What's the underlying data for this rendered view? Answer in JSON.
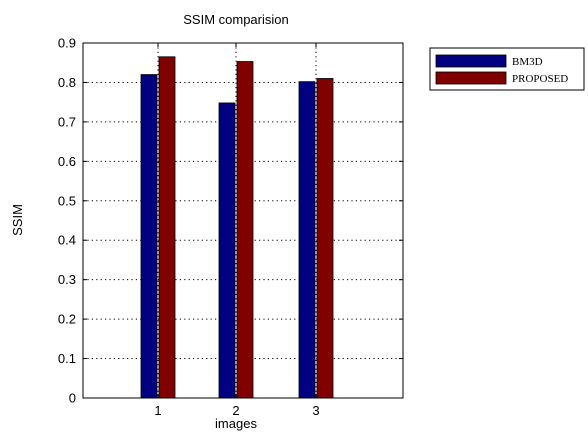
{
  "chart_data": {
    "type": "bar",
    "title": "SSIM comparision",
    "xlabel": "images",
    "ylabel": "SSIM",
    "categories": [
      "1",
      "2",
      "3"
    ],
    "series": [
      {
        "name": "BM3D",
        "values": [
          0.82,
          0.748,
          0.802
        ],
        "color": "#000080"
      },
      {
        "name": "PROPOSED",
        "values": [
          0.865,
          0.853,
          0.81
        ],
        "color": "#800000"
      }
    ],
    "ylim": [
      0,
      0.9
    ],
    "yticks": [
      0,
      0.1,
      0.2,
      0.3,
      0.4,
      0.5,
      0.6,
      0.7,
      0.8,
      0.9
    ],
    "ytick_labels": [
      "0",
      "0.1",
      "0.2",
      "0.3",
      "0.4",
      "0.5",
      "0.6",
      "0.7",
      "0.8",
      "0.9"
    ],
    "grid": true,
    "legend_position": "outside-top-right"
  }
}
